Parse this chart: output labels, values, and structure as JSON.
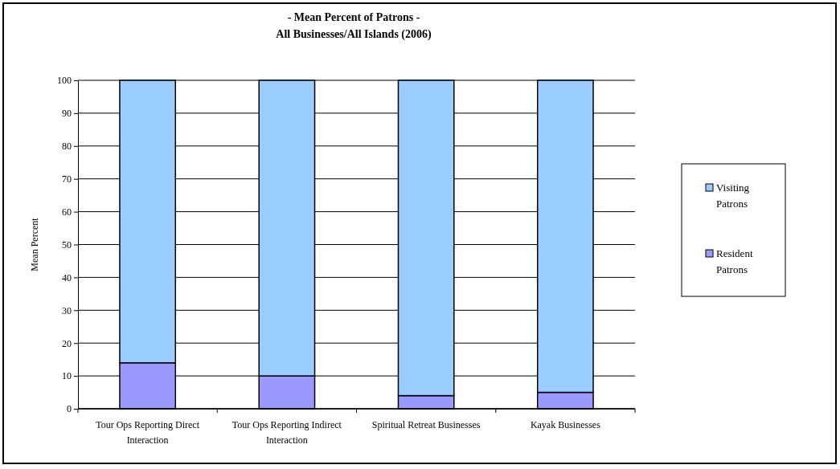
{
  "chart_data": {
    "type": "bar",
    "title": "- Mean Percent of Patrons -\nAll Businesses/All Islands (2006)",
    "ylabel": "Mean Percent",
    "categories": [
      "Tour Ops Reporting Direct Interaction",
      "Tour Ops Reporting Indirect Interaction",
      "Spiritual Retreat Businesses",
      "Kayak Businesses"
    ],
    "stacked": true,
    "series": [
      {
        "name": "Resident Patrons",
        "color": "#9999ff",
        "values": [
          14,
          10,
          4,
          5
        ]
      },
      {
        "name": "Visiting Patrons",
        "color": "#99ccff",
        "values": [
          86,
          90,
          96,
          95
        ]
      }
    ],
    "ylim": [
      0,
      100
    ],
    "yticks": [
      0,
      10,
      20,
      30,
      40,
      50,
      60,
      70,
      80,
      90,
      100
    ],
    "grid": "y",
    "legend": "right"
  }
}
